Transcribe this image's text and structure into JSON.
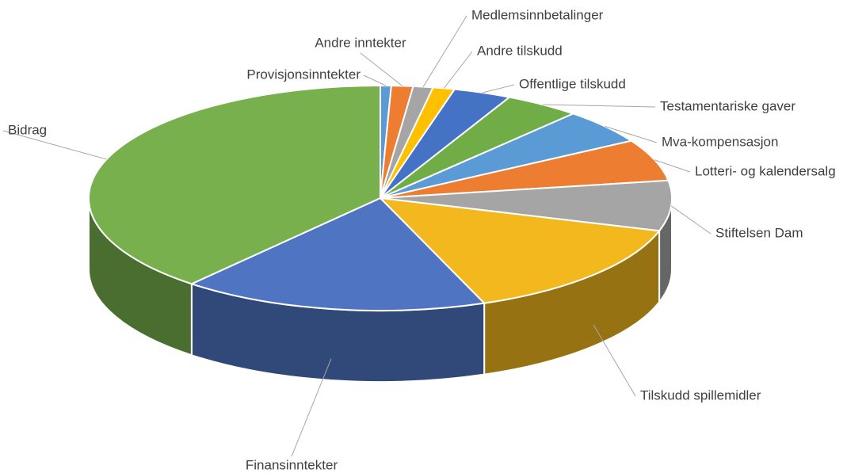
{
  "chart_data": {
    "type": "pie",
    "categories": [
      "Provisjonsinntekter",
      "Andre inntekter",
      "Medlemsinnbetalinger",
      "Andre tilskudd",
      "Offentlige tilskudd",
      "Testamentariske gaver",
      "Mva-kompensasjon",
      "Lotteri- og kalendersalg",
      "Stiftelsen Dam",
      "Tilskudd spillemidler",
      "Finansinntekter",
      "Bidrag"
    ],
    "values": [
      0.6,
      1.2,
      1.1,
      1.2,
      3.2,
      4.2,
      5.0,
      6.0,
      7.2,
      14.5,
      17.0,
      38.8
    ],
    "colors": [
      "#5b9bd5",
      "#ed7d31",
      "#a5a5a5",
      "#ffc000",
      "#4472c4",
      "#70ad47",
      "#5b9bd5",
      "#ed7d31",
      "#a5a5a5",
      "#f2b81e",
      "#4f75c2",
      "#78b04d"
    ]
  }
}
